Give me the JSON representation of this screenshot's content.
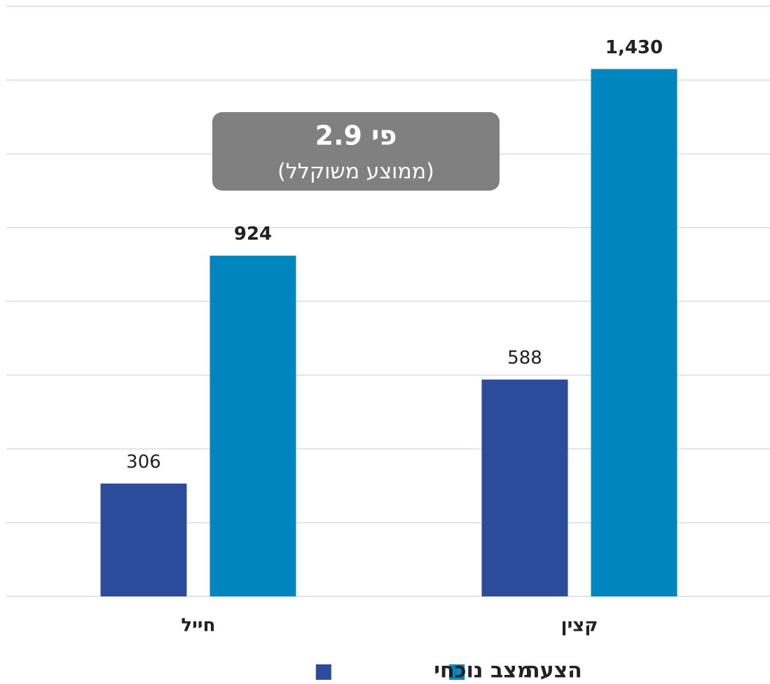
{
  "chart_data": {
    "type": "bar",
    "categories": [
      "חייל",
      "קצין"
    ],
    "series": [
      {
        "name": "מצב נוכחי",
        "color": "#2b4c9b",
        "values": [
          306,
          588
        ]
      },
      {
        "name": "הצעה",
        "color": "#0085bf",
        "values": [
          924,
          1430
        ],
        "value_labels": [
          "924",
          "1,430"
        ]
      }
    ],
    "ylim": [
      0,
      1600
    ],
    "yticks": [
      0,
      200,
      400,
      600,
      800,
      1000,
      1200,
      1400,
      1600
    ],
    "grid": true,
    "annotation": {
      "title": "פי 2.9",
      "subtitle": "(ממוצע משוקלל)"
    }
  }
}
